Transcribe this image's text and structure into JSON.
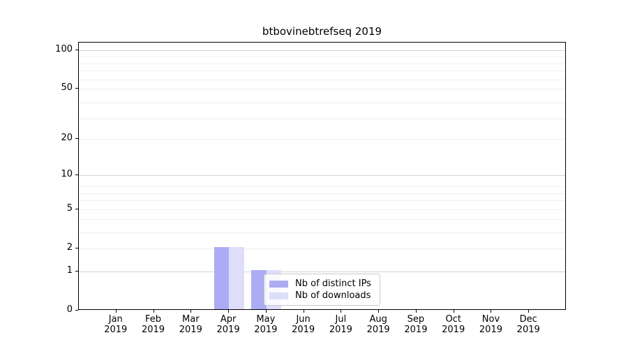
{
  "chart_data": {
    "type": "bar",
    "title": "btbovinebtrefseq 2019",
    "x_axis": {
      "categories": [
        "Jan",
        "Feb",
        "Mar",
        "Apr",
        "May",
        "Jun",
        "Jul",
        "Aug",
        "Sep",
        "Oct",
        "Nov",
        "Dec"
      ],
      "year_label": "2019"
    },
    "y_axis": {
      "ticks": [
        0,
        1,
        2,
        5,
        10,
        20,
        50,
        100
      ],
      "scale": "log1p",
      "ylim": [
        0,
        115
      ],
      "grid_major_values": [
        1,
        10,
        100
      ],
      "grid_minor_values": [
        2,
        3,
        4,
        5,
        6,
        7,
        8,
        20,
        29,
        39,
        50,
        59,
        69,
        79,
        89
      ]
    },
    "series": [
      {
        "name": "Nb of distinct IPs",
        "color": "#acacf4",
        "values": [
          0,
          0,
          0,
          2,
          1,
          0,
          0,
          0,
          0,
          0,
          0,
          0
        ]
      },
      {
        "name": "Nb of downloads",
        "color": "#dedefb",
        "values": [
          0,
          0,
          0,
          2,
          1,
          0,
          0,
          0,
          0,
          0,
          0,
          0
        ]
      }
    ],
    "legend": {
      "labels": [
        "Nb of distinct IPs",
        "Nb of downloads"
      ],
      "position": "lower center-right"
    },
    "colors": {
      "spine": "#000000",
      "grid_major": "#d2d2d2",
      "grid_minor": "#f0f0f0",
      "background": "#ffffff"
    }
  }
}
